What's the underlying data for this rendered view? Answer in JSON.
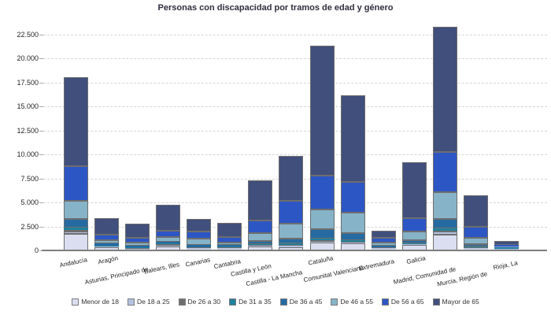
{
  "chart_data": {
    "type": "bar",
    "stacked": true,
    "title": "Personas con discapacidad por tramos de edad y género",
    "categories": [
      "Andalucía",
      "Aragón",
      "Asturias, Principado de",
      "Balears, Illes",
      "Canarias",
      "Cantabria",
      "Castilla y León",
      "Castilla - La Mancha",
      "Cataluña",
      "Comunitat Valenciana",
      "Extremadura",
      "Galicia",
      "Madrid, Comunidad de",
      "Murcia, Región de",
      "Rioja, La"
    ],
    "series": [
      {
        "name": "Menor de 18",
        "color": "#dadef0",
        "values": [
          1700,
          320,
          120,
          430,
          170,
          200,
          440,
          350,
          800,
          750,
          170,
          550,
          1675,
          200,
          60
        ]
      },
      {
        "name": "De 18 a 25",
        "color": "#b4c2e2",
        "values": [
          250,
          40,
          25,
          60,
          35,
          35,
          80,
          120,
          110,
          80,
          30,
          80,
          280,
          30,
          10
        ]
      },
      {
        "name": "De 26 a 30",
        "color": "#6e6e6e",
        "values": [
          190,
          40,
          35,
          200,
          40,
          35,
          70,
          120,
          165,
          80,
          35,
          70,
          135,
          35,
          10
        ]
      },
      {
        "name": "De 31 a 35",
        "color": "#20809d",
        "values": [
          220,
          60,
          40,
          60,
          60,
          45,
          70,
          130,
          190,
          170,
          40,
          70,
          195,
          50,
          10
        ]
      },
      {
        "name": "De 36 a 45",
        "color": "#256ba2",
        "values": [
          900,
          230,
          150,
          180,
          190,
          185,
          330,
          545,
          965,
          770,
          160,
          280,
          990,
          260,
          40
        ]
      },
      {
        "name": "De 46 a 55",
        "color": "#86b3c7",
        "values": [
          1950,
          330,
          330,
          440,
          690,
          280,
          825,
          1515,
          2065,
          2065,
          325,
          905,
          2810,
          630,
          90
        ]
      },
      {
        "name": "De 56 a 65",
        "color": "#2d56c5",
        "values": [
          3550,
          600,
          530,
          690,
          720,
          545,
          1300,
          2395,
          3520,
          3255,
          480,
          1430,
          4210,
          1200,
          120
        ]
      },
      {
        "name": "Mayor de 65",
        "color": "#414f7c",
        "values": [
          9350,
          1700,
          1440,
          2700,
          1340,
          1475,
          4210,
          4680,
          13545,
          9040,
          760,
          5805,
          13045,
          3265,
          460
        ]
      }
    ],
    "ylim": [
      0,
      22500
    ],
    "y_ticks": [
      0,
      2500,
      5000,
      7500,
      10000,
      12500,
      15000,
      17500,
      20000,
      22500
    ],
    "y_tick_labels": [
      "0",
      "2.500",
      "5.000",
      "7.500",
      "10.000",
      "12.500",
      "15.000",
      "17.500",
      "20.000",
      "22.500"
    ],
    "grid": "horizontal-dashed",
    "legend_position": "bottom"
  },
  "styles": {
    "title_color": "#2e2e3e",
    "grid_color": "#d4d4d4",
    "axis_color": "#7d7d7d",
    "bar_border_color": "#6e6e6e",
    "tick_text_color": "#1f1f1f",
    "legend_text_color": "#333333",
    "background": "#ffffff"
  }
}
